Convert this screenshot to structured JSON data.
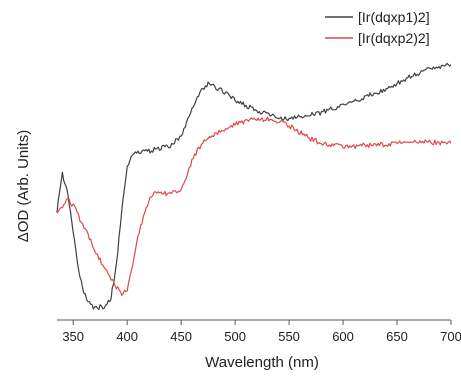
{
  "chart_data": {
    "type": "line",
    "xlabel": "Wavelength (nm)",
    "ylabel": "ΔOD (Arb. Units)",
    "xlim": [
      335,
      700
    ],
    "ylim": [
      -1.1,
      1.3
    ],
    "x_ticks": [
      350,
      400,
      450,
      500,
      550,
      600,
      650,
      700
    ],
    "y_ticks_labeled": false,
    "grid": false,
    "legend_position": "top-right",
    "series": [
      {
        "name": "[Ir(dqxp1)2]",
        "color": "#404040",
        "x": [
          335,
          340,
          345,
          350,
          355,
          360,
          365,
          370,
          375,
          380,
          385,
          390,
          395,
          400,
          405,
          410,
          415,
          420,
          425,
          430,
          440,
          450,
          455,
          460,
          465,
          470,
          475,
          480,
          490,
          500,
          510,
          520,
          530,
          540,
          550,
          560,
          570,
          580,
          590,
          600,
          610,
          620,
          630,
          640,
          650,
          660,
          670,
          680,
          690,
          700
        ],
        "y": [
          -0.1,
          0.25,
          0.05,
          -0.3,
          -0.65,
          -0.85,
          -0.95,
          -1.0,
          -0.98,
          -0.97,
          -0.9,
          -0.6,
          -0.1,
          0.3,
          0.42,
          0.43,
          0.44,
          0.45,
          0.46,
          0.47,
          0.5,
          0.58,
          0.7,
          0.82,
          0.95,
          1.02,
          1.06,
          1.05,
          0.98,
          0.92,
          0.86,
          0.82,
          0.78,
          0.76,
          0.74,
          0.76,
          0.78,
          0.8,
          0.84,
          0.87,
          0.9,
          0.94,
          0.98,
          1.02,
          1.07,
          1.12,
          1.16,
          1.2,
          1.22,
          1.24
        ]
      },
      {
        "name": "[Ir(dqxp2)2]",
        "color": "#e04848",
        "x": [
          335,
          340,
          345,
          350,
          355,
          360,
          365,
          370,
          375,
          380,
          385,
          390,
          395,
          400,
          405,
          410,
          415,
          420,
          425,
          430,
          440,
          450,
          455,
          460,
          465,
          470,
          480,
          490,
          500,
          510,
          520,
          530,
          540,
          550,
          560,
          570,
          580,
          590,
          600,
          610,
          620,
          630,
          640,
          650,
          660,
          670,
          680,
          690,
          700
        ],
        "y": [
          -0.1,
          -0.05,
          0.0,
          -0.05,
          -0.15,
          -0.25,
          -0.35,
          -0.45,
          -0.55,
          -0.65,
          -0.72,
          -0.8,
          -0.86,
          -0.83,
          -0.6,
          -0.35,
          -0.15,
          0.0,
          0.05,
          0.06,
          0.06,
          0.1,
          0.2,
          0.35,
          0.45,
          0.52,
          0.6,
          0.65,
          0.7,
          0.72,
          0.74,
          0.74,
          0.72,
          0.68,
          0.62,
          0.56,
          0.52,
          0.5,
          0.49,
          0.49,
          0.5,
          0.5,
          0.51,
          0.52,
          0.52,
          0.53,
          0.53,
          0.52,
          0.52
        ]
      }
    ]
  }
}
